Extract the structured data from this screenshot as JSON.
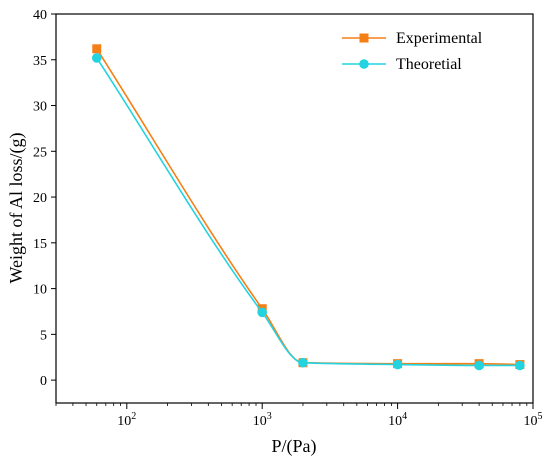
{
  "chart_data": {
    "type": "line",
    "title": "",
    "xlabel": "P/(Pa)",
    "ylabel": "Weight of Al loss/(g)",
    "xscale": "log",
    "xlim": [
      30,
      100000
    ],
    "ylim": [
      -2.5,
      40
    ],
    "yticks": [
      0,
      5,
      10,
      15,
      20,
      25,
      30,
      35,
      40
    ],
    "xticks": [
      {
        "value": 100,
        "base": "10",
        "exp": "2"
      },
      {
        "value": 1000,
        "base": "10",
        "exp": "3"
      },
      {
        "value": 10000,
        "base": "10",
        "exp": "4"
      },
      {
        "value": 100000,
        "base": "10",
        "exp": "5"
      }
    ],
    "grid": false,
    "legend_position": "top-right",
    "series": [
      {
        "name": "Experimental",
        "color": "#F57F17",
        "marker": "square",
        "x": [
          60,
          1000,
          2000,
          10000,
          40000,
          80000
        ],
        "y": [
          36.2,
          7.8,
          1.9,
          1.8,
          1.8,
          1.7
        ]
      },
      {
        "name": "Theoretial",
        "color": "#24D3E0",
        "marker": "circle",
        "x": [
          60,
          1000,
          2000,
          10000,
          40000,
          80000
        ],
        "y": [
          35.2,
          7.4,
          1.9,
          1.7,
          1.6,
          1.6
        ]
      }
    ]
  }
}
